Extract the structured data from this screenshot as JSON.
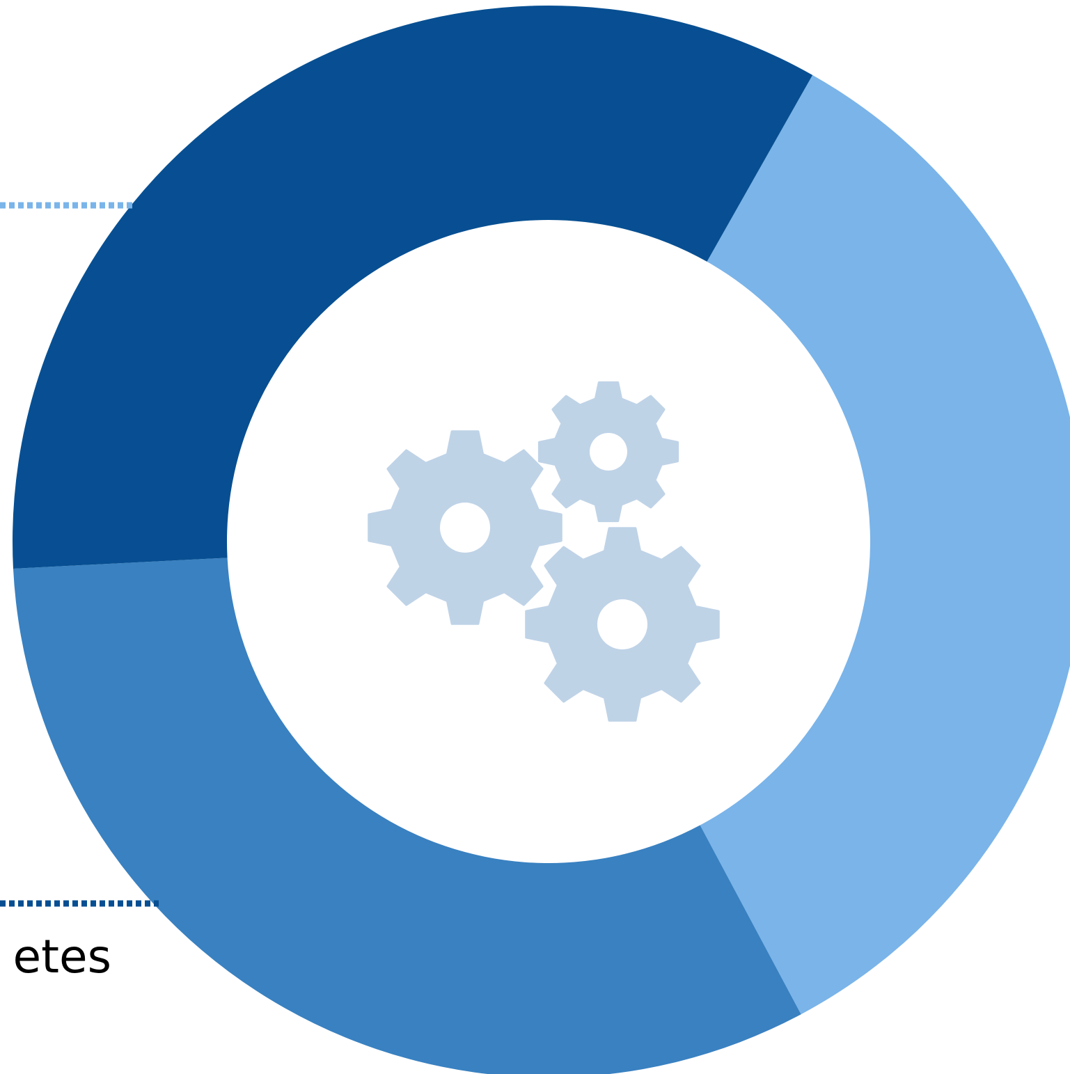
{
  "chart_data": {
    "type": "donut",
    "slices": [
      {
        "name": "",
        "value": 34.0,
        "color": "#7ab4e9"
      },
      {
        "name": "",
        "value": 32.0,
        "color": "#3981c1"
      },
      {
        "name": "",
        "value": 34.0,
        "color": "#074f92"
      }
    ],
    "start_angle_deg": 29.5,
    "center_icon": "gears-icon",
    "center_icon_color": "#bfd3e7",
    "callouts": [
      {
        "text": "",
        "color": "#7ab4e9"
      },
      {
        "text": "etes",
        "color": "#074f92"
      }
    ]
  }
}
